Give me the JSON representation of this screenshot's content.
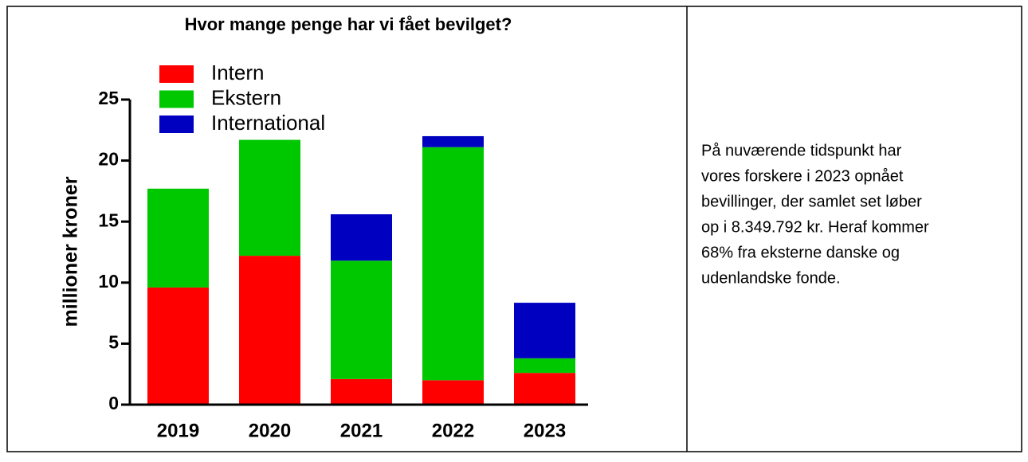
{
  "chart_data": {
    "type": "stacked_bar",
    "title": "Hvor mange penge har vi fået bevilget?",
    "y_label": "millioner kroner",
    "categories": [
      "2019",
      "2020",
      "2021",
      "2022",
      "2023"
    ],
    "series": [
      {
        "name": "Intern",
        "color": "#ff0000",
        "values": [
          9.6,
          12.2,
          2.1,
          2.0,
          2.6
        ]
      },
      {
        "name": "Ekstern",
        "color": "#00c800",
        "values": [
          8.1,
          9.5,
          9.7,
          19.1,
          1.2
        ]
      },
      {
        "name": "International",
        "color": "#0000c0",
        "values": [
          0,
          0,
          3.8,
          0.9,
          4.55
        ]
      }
    ],
    "ylim": [
      0,
      25
    ],
    "yticks": [
      0,
      5,
      10,
      15,
      20,
      25
    ],
    "legend": "upper-left"
  },
  "note": {
    "lines": [
      "På nuværende tidspunkt har",
      "vores forskere i 2023 opnået",
      "bevillinger, der samlet set løber",
      "op i 8.349.792 kr. Heraf kommer",
      "68% fra eksterne danske og",
      "udenlandske fonde."
    ]
  }
}
